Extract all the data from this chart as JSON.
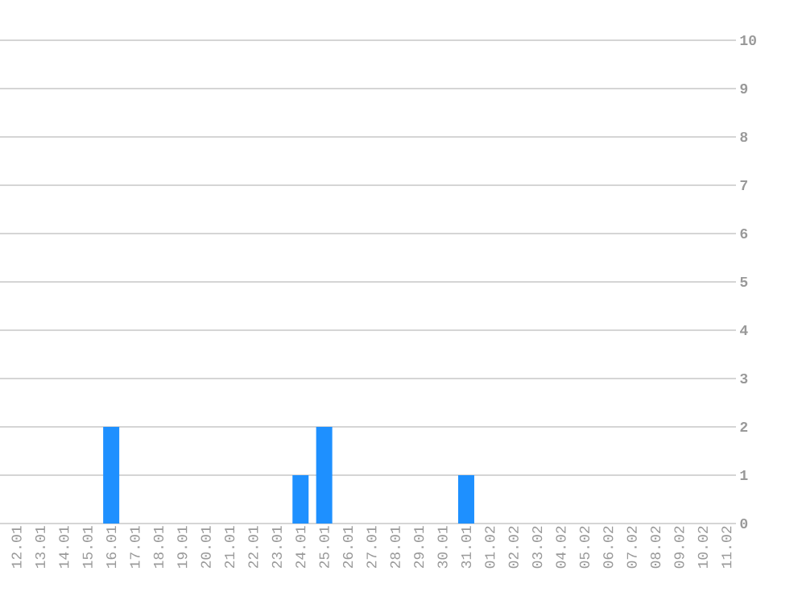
{
  "chart_data": {
    "type": "bar",
    "categories": [
      "12.01",
      "13.01",
      "14.01",
      "15.01",
      "16.01",
      "17.01",
      "18.01",
      "19.01",
      "20.01",
      "21.01",
      "22.01",
      "23.01",
      "24.01",
      "25.01",
      "26.01",
      "27.01",
      "28.01",
      "29.01",
      "30.01",
      "31.01",
      "01.02",
      "02.02",
      "03.02",
      "04.02",
      "05.02",
      "06.02",
      "07.02",
      "08.02",
      "09.02",
      "10.02",
      "11.02"
    ],
    "values": [
      0,
      0,
      0,
      0,
      2,
      0,
      0,
      0,
      0,
      0,
      0,
      0,
      1,
      2,
      0,
      0,
      0,
      0,
      0,
      1,
      0,
      0,
      0,
      0,
      0,
      0,
      0,
      0,
      0,
      0,
      0
    ],
    "color": "#1e90ff",
    "ylim": [
      0,
      10
    ],
    "yticks": [
      0,
      1,
      2,
      3,
      4,
      5,
      6,
      7,
      8,
      9,
      10
    ],
    "grid": "y"
  }
}
